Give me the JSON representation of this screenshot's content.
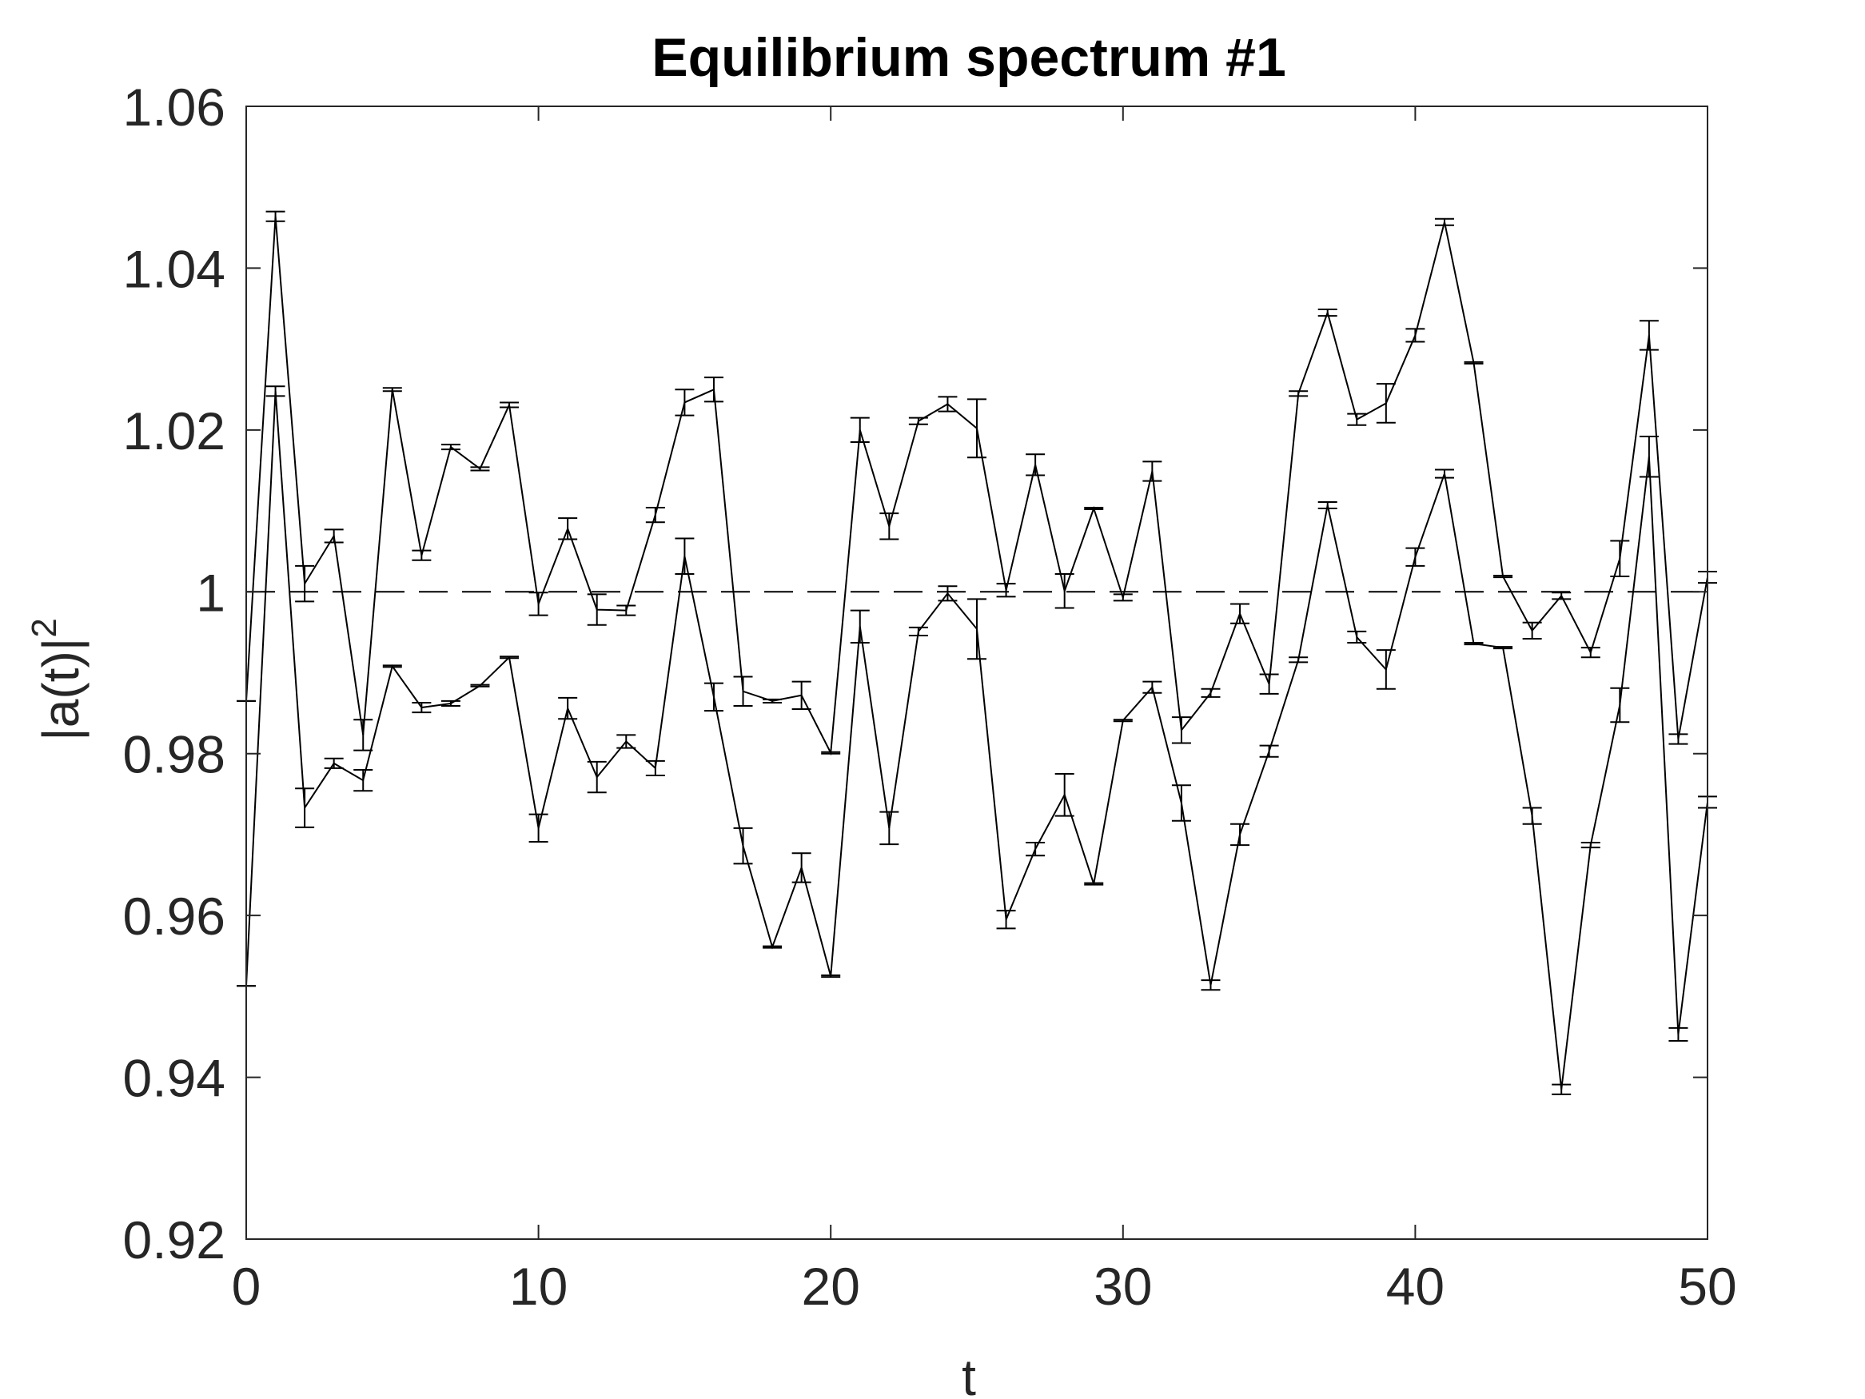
{
  "chart_data": {
    "type": "line",
    "title": "Equilibrium spectrum #1",
    "xlabel": "t",
    "ylabel_base": "|a(t)|",
    "ylabel_sup": "2",
    "xlim": [
      0,
      50
    ],
    "ylim": [
      0.92,
      1.06
    ],
    "xticks": [
      0,
      10,
      20,
      30,
      40,
      50
    ],
    "xtick_labels": [
      "0",
      "10",
      "20",
      "30",
      "40",
      "50"
    ],
    "yticks": [
      0.92,
      0.94,
      0.96,
      0.98,
      1.0,
      1.02,
      1.04,
      1.06
    ],
    "ytick_labels": [
      "0.92",
      "0.94",
      "0.96",
      "0.98",
      "1",
      "1.02",
      "1.04",
      "1.06"
    ],
    "grid": false,
    "reference_line": {
      "y": 1,
      "style": "dashed"
    },
    "colors": {
      "line": "#000000",
      "axis": "#262626",
      "background": "#ffffff"
    },
    "series": [
      {
        "x": [
          0,
          1,
          2,
          3,
          4,
          5,
          6,
          7,
          8,
          9,
          10,
          11,
          12,
          13,
          14,
          15,
          16,
          17,
          18,
          19,
          20,
          21,
          22,
          23,
          24,
          25,
          26,
          27,
          28,
          29,
          30,
          31,
          32,
          33,
          34,
          35,
          36,
          37,
          38,
          39,
          40,
          41,
          42,
          43,
          44,
          45,
          46,
          47,
          48,
          49,
          50
        ],
        "values": [
          0.9865,
          1.0464,
          1.001,
          1.0069,
          0.9823,
          1.025,
          1.0045,
          1.0179,
          1.0152,
          1.0231,
          0.9985,
          1.0078,
          0.9978,
          0.9977,
          1.0095,
          1.0234,
          1.025,
          0.9877,
          0.9865,
          0.9872,
          0.9801,
          1.02,
          1.0081,
          1.0211,
          1.0232,
          1.0202,
          1.0002,
          1.0157,
          1.0001,
          1.0103,
          0.9993,
          1.0149,
          0.9829,
          0.9875,
          0.9973,
          0.9886,
          1.0245,
          1.0345,
          1.0213,
          1.0233,
          1.0317,
          1.0457,
          1.0283,
          1.0019,
          0.9952,
          0.9995,
          0.9925,
          1.0041,
          1.0317,
          0.9818,
          1.0018
        ],
        "errors": [
          0.0,
          0.0006,
          0.0022,
          0.0008,
          0.0019,
          0.0002,
          0.0006,
          0.0003,
          0.0002,
          0.0003,
          0.0014,
          0.0013,
          0.0019,
          0.0006,
          0.0009,
          0.0016,
          0.0015,
          0.0018,
          0.0002,
          0.0017,
          0.0001,
          0.0015,
          0.0016,
          0.0004,
          0.0009,
          0.0036,
          0.0008,
          0.0013,
          0.0021,
          0.0001,
          0.0004,
          0.0012,
          0.0016,
          0.0005,
          0.0012,
          0.0012,
          0.0003,
          0.0004,
          0.0007,
          0.0024,
          0.0008,
          0.0004,
          0.0001,
          0.0001,
          0.001,
          0.0004,
          0.0006,
          0.0022,
          0.0018,
          0.0006,
          0.0007
        ]
      },
      {
        "x": [
          0,
          1,
          2,
          3,
          4,
          5,
          6,
          7,
          8,
          9,
          10,
          11,
          12,
          13,
          14,
          15,
          16,
          17,
          18,
          19,
          20,
          21,
          22,
          23,
          24,
          25,
          26,
          27,
          28,
          29,
          30,
          31,
          32,
          33,
          34,
          35,
          36,
          37,
          38,
          39,
          40,
          41,
          42,
          43,
          44,
          45,
          46,
          47,
          48,
          49,
          50
        ],
        "values": [
          0.9513,
          1.0248,
          0.9733,
          0.9788,
          0.9767,
          0.9908,
          0.9857,
          0.9862,
          0.9884,
          0.9919,
          0.9708,
          0.9856,
          0.9771,
          0.9815,
          0.9782,
          1.0044,
          0.987,
          0.9686,
          0.9561,
          0.9659,
          0.9525,
          0.9957,
          0.9708,
          0.9951,
          0.9998,
          0.9954,
          0.9595,
          0.9682,
          0.9749,
          0.9639,
          0.9841,
          0.9882,
          0.9739,
          0.9514,
          0.97,
          0.9803,
          0.9916,
          1.0107,
          0.9944,
          0.9904,
          1.0043,
          1.0146,
          0.9936,
          0.9931,
          0.9723,
          0.9385,
          0.9687,
          0.986,
          1.0167,
          0.9453,
          0.974
        ],
        "errors": [
          0.0,
          0.0006,
          0.0024,
          0.0006,
          0.0013,
          0.0001,
          0.0006,
          0.0003,
          0.0001,
          0.0001,
          0.0017,
          0.0013,
          0.0019,
          0.0008,
          0.0009,
          0.0022,
          0.0017,
          0.0022,
          0.0001,
          0.0018,
          0.0001,
          0.002,
          0.002,
          0.0005,
          0.0009,
          0.0037,
          0.0011,
          0.0008,
          0.0026,
          0.0001,
          0.0001,
          0.0007,
          0.0022,
          0.0006,
          0.0013,
          0.0007,
          0.0003,
          0.0004,
          0.0007,
          0.0024,
          0.0011,
          0.0005,
          0.0001,
          0.0001,
          0.001,
          0.0006,
          0.0003,
          0.0021,
          0.0025,
          0.0008,
          0.0007
        ]
      }
    ]
  }
}
